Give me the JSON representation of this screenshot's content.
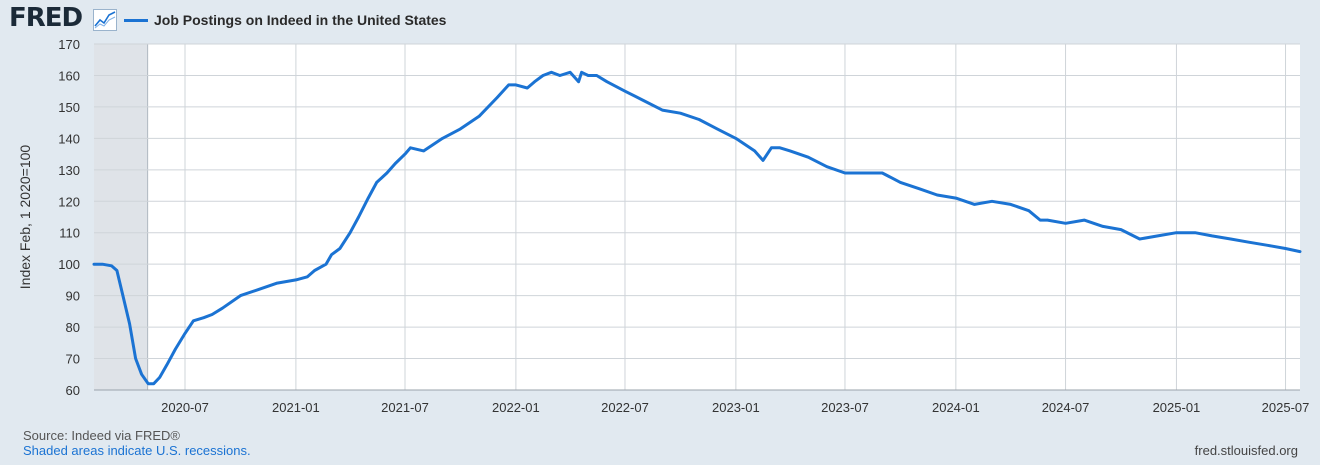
{
  "header": {
    "logo_text": "FRED",
    "logo_icon": "line-chart-icon",
    "series_color": "#1b73d3"
  },
  "footer": {
    "source": "Source: Indeed via FRED®",
    "recession_note": "Shaded areas indicate U.S. recessions.",
    "url": "fred.stlouisfed.org"
  },
  "chart_data": {
    "type": "line",
    "title": "",
    "xlabel": "",
    "ylabel": "Index Feb, 1 2020=100",
    "xlim": [
      "2020-02-01",
      "2025-07-25"
    ],
    "ylim": [
      60,
      170
    ],
    "yticks": [
      60,
      70,
      80,
      90,
      100,
      110,
      120,
      130,
      140,
      150,
      160,
      170
    ],
    "xticks": [
      "2020-07",
      "2021-01",
      "2021-07",
      "2022-01",
      "2022-07",
      "2023-01",
      "2023-07",
      "2024-01",
      "2024-07",
      "2025-01",
      "2025-07"
    ],
    "grid": true,
    "recession_shading": [
      [
        "2020-02-01",
        "2020-04-30"
      ]
    ],
    "series": [
      {
        "name": "Job Postings on Indeed in the United States",
        "color": "#1b73d3",
        "x": [
          "2020-02-01",
          "2020-02-15",
          "2020-03-01",
          "2020-03-10",
          "2020-03-20",
          "2020-03-31",
          "2020-04-10",
          "2020-04-20",
          "2020-05-01",
          "2020-05-10",
          "2020-05-20",
          "2020-06-01",
          "2020-06-15",
          "2020-07-01",
          "2020-07-15",
          "2020-08-01",
          "2020-08-15",
          "2020-09-01",
          "2020-10-01",
          "2020-11-01",
          "2020-12-01",
          "2021-01-01",
          "2021-01-20",
          "2021-02-01",
          "2021-02-20",
          "2021-03-01",
          "2021-03-15",
          "2021-04-01",
          "2021-04-15",
          "2021-05-01",
          "2021-05-15",
          "2021-06-01",
          "2021-06-15",
          "2021-07-01",
          "2021-07-10",
          "2021-08-01",
          "2021-09-01",
          "2021-10-01",
          "2021-11-01",
          "2021-12-01",
          "2021-12-20",
          "2022-01-01",
          "2022-01-20",
          "2022-02-01",
          "2022-02-15",
          "2022-03-01",
          "2022-03-15",
          "2022-04-01",
          "2022-04-15",
          "2022-04-20",
          "2022-05-01",
          "2022-05-15",
          "2022-06-01",
          "2022-07-01",
          "2022-08-01",
          "2022-09-01",
          "2022-10-01",
          "2022-11-01",
          "2022-12-01",
          "2023-01-01",
          "2023-02-01",
          "2023-02-15",
          "2023-03-01",
          "2023-03-15",
          "2023-04-01",
          "2023-05-01",
          "2023-06-01",
          "2023-07-01",
          "2023-08-01",
          "2023-09-01",
          "2023-10-01",
          "2023-11-01",
          "2023-12-01",
          "2024-01-01",
          "2024-02-01",
          "2024-03-01",
          "2024-04-01",
          "2024-05-01",
          "2024-05-20",
          "2024-06-01",
          "2024-07-01",
          "2024-08-01",
          "2024-09-01",
          "2024-10-01",
          "2024-11-01",
          "2024-12-01",
          "2025-01-01",
          "2025-02-01",
          "2025-03-01",
          "2025-04-01",
          "2025-05-01",
          "2025-06-01",
          "2025-07-01",
          "2025-07-25"
        ],
        "values": [
          100,
          100,
          99.5,
          98,
          90,
          81,
          70,
          65,
          62,
          62,
          64,
          68,
          73,
          78,
          82,
          83,
          84,
          86,
          90,
          92,
          94,
          95,
          96,
          98,
          100,
          103,
          105,
          110,
          115,
          121,
          126,
          129,
          132,
          135,
          137,
          136,
          140,
          143,
          147,
          153,
          157,
          157,
          156,
          158,
          160,
          161,
          160,
          161,
          158,
          161,
          160,
          160,
          158,
          155,
          152,
          149,
          148,
          146,
          143,
          140,
          136,
          133,
          137,
          137,
          136,
          134,
          131,
          129,
          129,
          129,
          126,
          124,
          122,
          121,
          119,
          120,
          119,
          117,
          114,
          114,
          113,
          114,
          112,
          111,
          108,
          109,
          110,
          110,
          109,
          108,
          107,
          106,
          105,
          104
        ]
      }
    ]
  }
}
